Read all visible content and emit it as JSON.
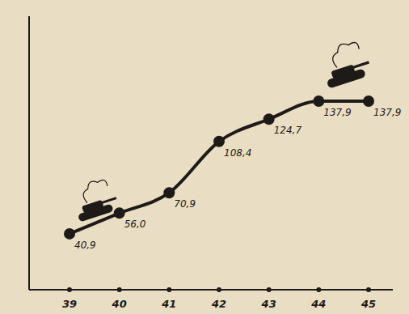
{
  "chart_data": {
    "type": "line",
    "categories": [
      "39",
      "40",
      "41",
      "42",
      "43",
      "44",
      "45"
    ],
    "values": [
      40.9,
      56.0,
      70.9,
      108.4,
      124.7,
      137.9,
      137.9
    ],
    "value_labels": [
      "40,9",
      "56,0",
      "70,9",
      "108,4",
      "124,7",
      "137,9",
      "137,9"
    ],
    "data_labels": true,
    "color": "#1e1a17",
    "marker": "circle",
    "tick_labels": "x",
    "ylim": [
      0,
      200
    ]
  }
}
